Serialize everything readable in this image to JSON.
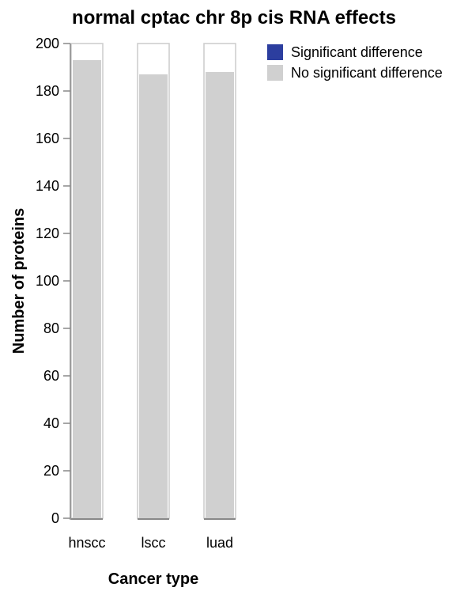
{
  "chart_data": {
    "type": "bar",
    "stacked": true,
    "title": "normal cptac chr 8p cis RNA effects",
    "xlabel": "Cancer type",
    "ylabel": "Number of proteins",
    "categories": [
      "hnscc",
      "lscc",
      "luad"
    ],
    "ylim": [
      0,
      200
    ],
    "yticks": [
      0,
      20,
      40,
      60,
      80,
      100,
      120,
      140,
      160,
      180,
      200
    ],
    "series": [
      {
        "name": "Significant difference",
        "color": "#2c3e9f",
        "values": [
          0,
          0,
          0
        ]
      },
      {
        "name": "No significant difference",
        "color": "#d0d0d0",
        "values": [
          193,
          187,
          188
        ]
      }
    ],
    "grid": false,
    "legend": "top-right"
  }
}
